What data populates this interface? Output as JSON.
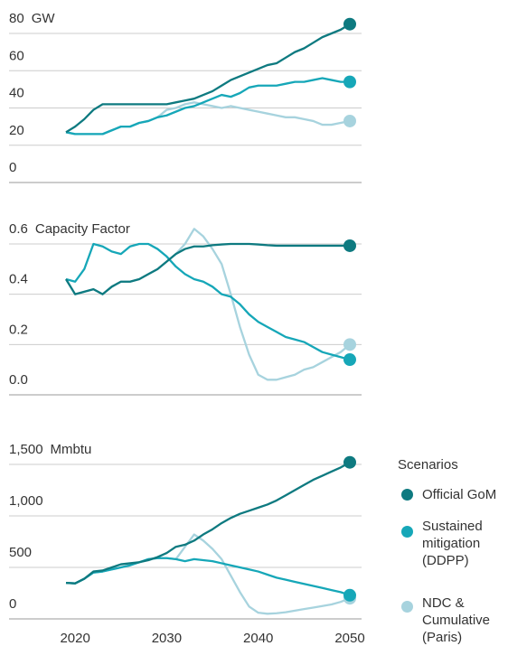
{
  "chart_data": [
    {
      "type": "line",
      "y_label": "GW",
      "x": [
        2019,
        2020,
        2021,
        2022,
        2023,
        2024,
        2025,
        2026,
        2027,
        2028,
        2029,
        2030,
        2031,
        2032,
        2033,
        2034,
        2035,
        2036,
        2037,
        2038,
        2039,
        2040,
        2041,
        2042,
        2043,
        2044,
        2045,
        2046,
        2047,
        2048,
        2049,
        2050
      ],
      "xlim": [
        2019,
        2050
      ],
      "ylim": [
        0,
        80
      ],
      "yticks": [
        0,
        20,
        40,
        60,
        80
      ],
      "grid": true,
      "series": [
        {
          "name": "Official GoM",
          "color": "#0e7a80",
          "values": [
            27,
            30,
            34,
            39,
            42,
            42,
            42,
            42,
            42,
            42,
            42,
            42,
            43,
            44,
            45,
            47,
            49,
            52,
            55,
            57,
            59,
            61,
            63,
            64,
            67,
            70,
            72,
            75,
            78,
            80,
            82,
            85
          ]
        },
        {
          "name": "Sustained mitigation (DDPP)",
          "color": "#16a7b8",
          "values": [
            27,
            26,
            26,
            26,
            26,
            28,
            30,
            30,
            32,
            33,
            35,
            36,
            38,
            40,
            41,
            43,
            45,
            47,
            46,
            48,
            51,
            52,
            52,
            52,
            53,
            54,
            54,
            55,
            56,
            55,
            54,
            54
          ]
        },
        {
          "name": "NDC & Cumulative (Paris)",
          "color": "#a7d3de",
          "values": [
            27,
            26,
            26,
            26,
            26,
            28,
            30,
            30,
            32,
            33,
            35,
            39,
            40,
            42,
            43,
            42,
            41,
            40,
            41,
            40,
            39,
            38,
            37,
            36,
            35,
            35,
            34,
            33,
            31,
            31,
            32,
            33
          ]
        }
      ]
    },
    {
      "type": "line",
      "y_label": "Capacity Factor",
      "x": [
        2019,
        2020,
        2021,
        2022,
        2023,
        2024,
        2025,
        2026,
        2027,
        2028,
        2029,
        2030,
        2031,
        2032,
        2033,
        2034,
        2035,
        2036,
        2037,
        2038,
        2039,
        2040,
        2041,
        2042,
        2043,
        2044,
        2045,
        2046,
        2047,
        2048,
        2049,
        2050
      ],
      "xlim": [
        2019,
        2050
      ],
      "ylim": [
        0,
        0.6
      ],
      "yticks": [
        {
          "value": 0,
          "label": "0.0"
        },
        0.2,
        0.4,
        0.6
      ],
      "grid": true,
      "series": [
        {
          "color": "#0e7a80",
          "values": [
            0.46,
            0.4,
            0.41,
            0.42,
            0.4,
            0.43,
            0.45,
            0.45,
            0.46,
            0.48,
            0.5,
            0.53,
            0.56,
            0.58,
            0.59,
            0.59,
            0.595,
            0.598,
            0.6,
            0.6,
            0.6,
            0.598,
            0.595,
            0.593,
            0.593,
            0.593,
            0.593,
            0.593,
            0.593,
            0.593,
            0.593,
            0.593
          ]
        },
        {
          "color": "#16a7b8",
          "values": [
            0.46,
            0.45,
            0.5,
            0.6,
            0.59,
            0.57,
            0.56,
            0.59,
            0.6,
            0.6,
            0.58,
            0.55,
            0.51,
            0.48,
            0.46,
            0.45,
            0.43,
            0.4,
            0.39,
            0.36,
            0.32,
            0.29,
            0.27,
            0.25,
            0.23,
            0.22,
            0.21,
            0.19,
            0.17,
            0.16,
            0.15,
            0.14
          ]
        },
        {
          "color": "#a7d3de",
          "values": [
            0.46,
            0.4,
            0.41,
            0.42,
            0.4,
            0.43,
            0.45,
            0.45,
            0.46,
            0.48,
            0.5,
            0.53,
            0.56,
            0.6,
            0.66,
            0.63,
            0.58,
            0.52,
            0.4,
            0.27,
            0.16,
            0.08,
            0.06,
            0.06,
            0.07,
            0.08,
            0.1,
            0.11,
            0.13,
            0.15,
            0.17,
            0.2
          ]
        }
      ]
    },
    {
      "type": "line",
      "y_label": "Mmbtu",
      "x": [
        2019,
        2020,
        2021,
        2022,
        2023,
        2024,
        2025,
        2026,
        2027,
        2028,
        2029,
        2030,
        2031,
        2032,
        2033,
        2034,
        2035,
        2036,
        2037,
        2038,
        2039,
        2040,
        2041,
        2042,
        2043,
        2044,
        2045,
        2046,
        2047,
        2048,
        2049,
        2050
      ],
      "xlim": [
        2019,
        2050
      ],
      "xticks": [
        2020,
        2030,
        2040,
        2050
      ],
      "ylim": [
        0,
        1500
      ],
      "yticks": [
        0,
        500,
        {
          "value": 1000,
          "label": "1,000"
        },
        {
          "value": 1500,
          "label": "1,500"
        }
      ],
      "grid": true,
      "series": [
        {
          "color": "#0e7a80",
          "values": [
            350,
            345,
            390,
            460,
            470,
            500,
            530,
            540,
            550,
            570,
            600,
            640,
            700,
            720,
            760,
            820,
            870,
            930,
            980,
            1020,
            1050,
            1080,
            1110,
            1150,
            1200,
            1250,
            1300,
            1350,
            1390,
            1430,
            1470,
            1520
          ]
        },
        {
          "color": "#16a7b8",
          "values": [
            350,
            345,
            390,
            450,
            460,
            480,
            500,
            520,
            550,
            580,
            590,
            590,
            580,
            560,
            580,
            570,
            560,
            540,
            520,
            500,
            480,
            460,
            430,
            400,
            380,
            360,
            340,
            320,
            300,
            280,
            260,
            230
          ]
        },
        {
          "color": "#a7d3de",
          "values": [
            350,
            345,
            390,
            450,
            460,
            480,
            500,
            520,
            550,
            580,
            590,
            590,
            580,
            700,
            820,
            760,
            680,
            580,
            420,
            260,
            120,
            60,
            50,
            55,
            65,
            80,
            95,
            110,
            125,
            140,
            165,
            200
          ]
        }
      ]
    }
  ],
  "legend": {
    "title": "Scenarios"
  }
}
